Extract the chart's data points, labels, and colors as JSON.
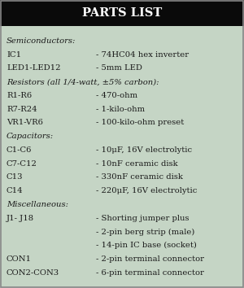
{
  "title": "PARTS LIST",
  "title_bg": "#0a0a0a",
  "title_color": "#ffffff",
  "bg_color": "#c5d5c5",
  "border_color": "#888888",
  "text_color": "#1a1a1a",
  "rows": [
    {
      "type": "section",
      "text": "Semiconductors:"
    },
    {
      "type": "item",
      "left": "IC1",
      "right": "- 74HC04 hex inverter"
    },
    {
      "type": "item",
      "left": "LED1-LED12",
      "right": "- 5mm LED"
    },
    {
      "type": "section",
      "text": "Resistors (all 1/4-watt, ±5% carbon):"
    },
    {
      "type": "item",
      "left": "R1-R6",
      "right": "- 470-ohm"
    },
    {
      "type": "item",
      "left": "R7-R24",
      "right": "- 1-kilo-ohm"
    },
    {
      "type": "item",
      "left": "VR1-VR6",
      "right": "- 100-kilo-ohm preset"
    },
    {
      "type": "section",
      "text": "Capacitors:"
    },
    {
      "type": "item",
      "left": "C1-C6",
      "right": "- 10μF, 16V electrolytic"
    },
    {
      "type": "item",
      "left": "C7-C12",
      "right": "- 10nF ceramic disk"
    },
    {
      "type": "item",
      "left": "C13",
      "right": "- 330nF ceramic disk"
    },
    {
      "type": "item",
      "left": "C14",
      "right": "- 220μF, 16V electrolytic"
    },
    {
      "type": "section",
      "text": "Miscellaneous:"
    },
    {
      "type": "item",
      "left": "J1- J18",
      "right": "- Shorting jumper plus"
    },
    {
      "type": "item",
      "left": "",
      "right": "- 2-pin berg strip (male)"
    },
    {
      "type": "item",
      "left": "",
      "right": "- 14-pin IC base (socket)"
    },
    {
      "type": "item",
      "left": "CON1",
      "right": "- 2-pin terminal connector"
    },
    {
      "type": "item",
      "left": "CON2-CON3",
      "right": "- 6-pin terminal connector"
    }
  ]
}
